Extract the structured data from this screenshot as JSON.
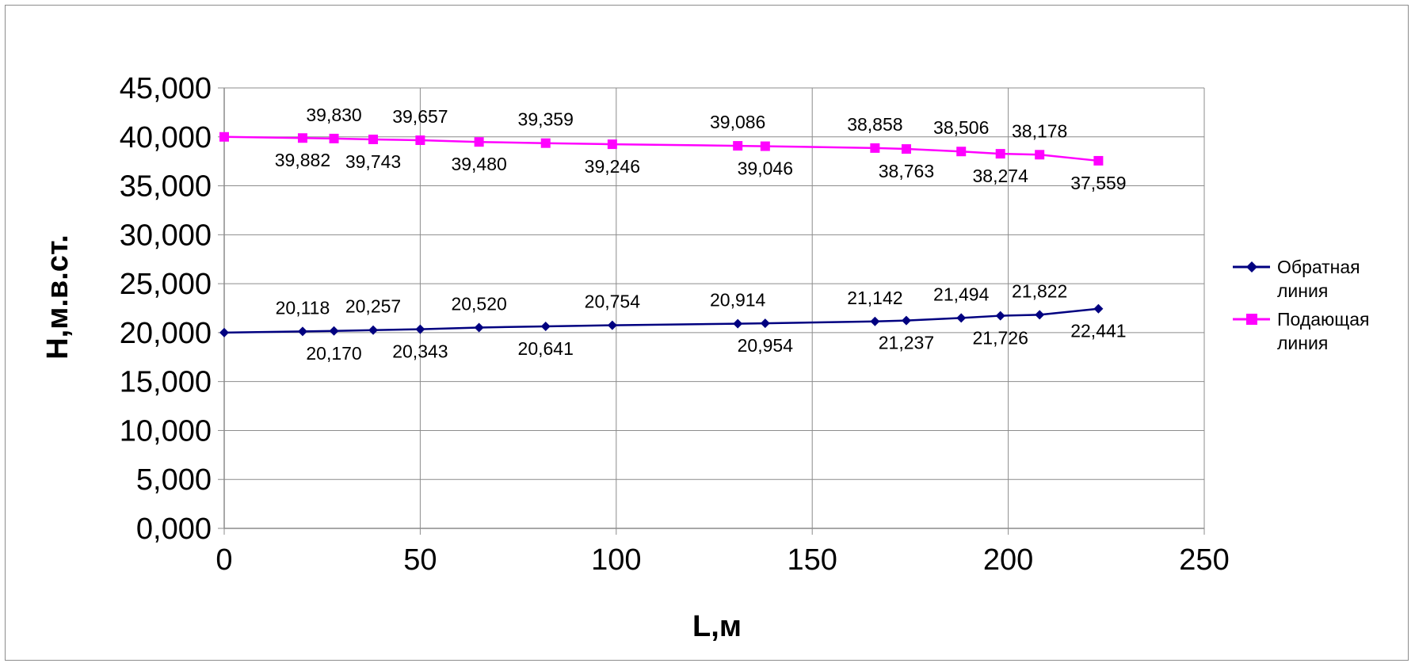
{
  "chart_data": {
    "type": "line",
    "title": "",
    "xlabel": "L,м",
    "ylabel": "H,м.в.ст.",
    "xlim": [
      0,
      250
    ],
    "ylim": [
      0,
      45
    ],
    "x_ticks": [
      "0",
      "50",
      "100",
      "150",
      "200",
      "250"
    ],
    "y_ticks": [
      "0,000",
      "5,000",
      "10,000",
      "15,000",
      "20,000",
      "25,000",
      "30,000",
      "35,000",
      "40,000",
      "45,000"
    ],
    "grid": true,
    "legend_position": "right",
    "series": [
      {
        "name": "Обратная линия",
        "color": "#000080",
        "marker": "diamond",
        "x": [
          0,
          20,
          28,
          38,
          50,
          65,
          82,
          99,
          131,
          138,
          166,
          174,
          188,
          198,
          208,
          223
        ],
        "y": [
          20.0,
          20.118,
          20.17,
          20.257,
          20.343,
          20.52,
          20.641,
          20.754,
          20.914,
          20.954,
          21.142,
          21.237,
          21.494,
          21.726,
          21.822,
          22.441
        ],
        "labels": [
          "",
          "20,118",
          "20,170",
          "20,257",
          "20,343",
          "20,520",
          "20,641",
          "20,754",
          "20,914",
          "20,954",
          "21,142",
          "21,237",
          "21,494",
          "21,726",
          "21,822",
          "22,441"
        ],
        "label_pos": [
          "",
          "above",
          "below",
          "above",
          "below",
          "above",
          "below",
          "above",
          "above",
          "below",
          "above",
          "below",
          "above",
          "below",
          "above",
          "below"
        ]
      },
      {
        "name": "Подающая линия",
        "color": "#ff00ff",
        "marker": "square",
        "x": [
          0,
          20,
          28,
          38,
          50,
          65,
          82,
          99,
          131,
          138,
          166,
          174,
          188,
          198,
          208,
          223
        ],
        "y": [
          40.0,
          39.882,
          39.83,
          39.743,
          39.657,
          39.48,
          39.359,
          39.246,
          39.086,
          39.046,
          38.858,
          38.763,
          38.506,
          38.274,
          38.178,
          37.559
        ],
        "labels": [
          "",
          "39,882",
          "39,830",
          "39,743",
          "39,657",
          "39,480",
          "39,359",
          "39,246",
          "39,086",
          "39,046",
          "38,858",
          "38,763",
          "38,506",
          "38,274",
          "38,178",
          "37,559"
        ],
        "label_pos": [
          "",
          "below",
          "above",
          "below",
          "above",
          "below",
          "above",
          "below",
          "above",
          "below",
          "above",
          "below",
          "above",
          "below",
          "above",
          "below"
        ]
      }
    ],
    "legend": [
      {
        "line1": "Обратная",
        "line2": "линия"
      },
      {
        "line1": "Подающая",
        "line2": "линия"
      }
    ]
  }
}
